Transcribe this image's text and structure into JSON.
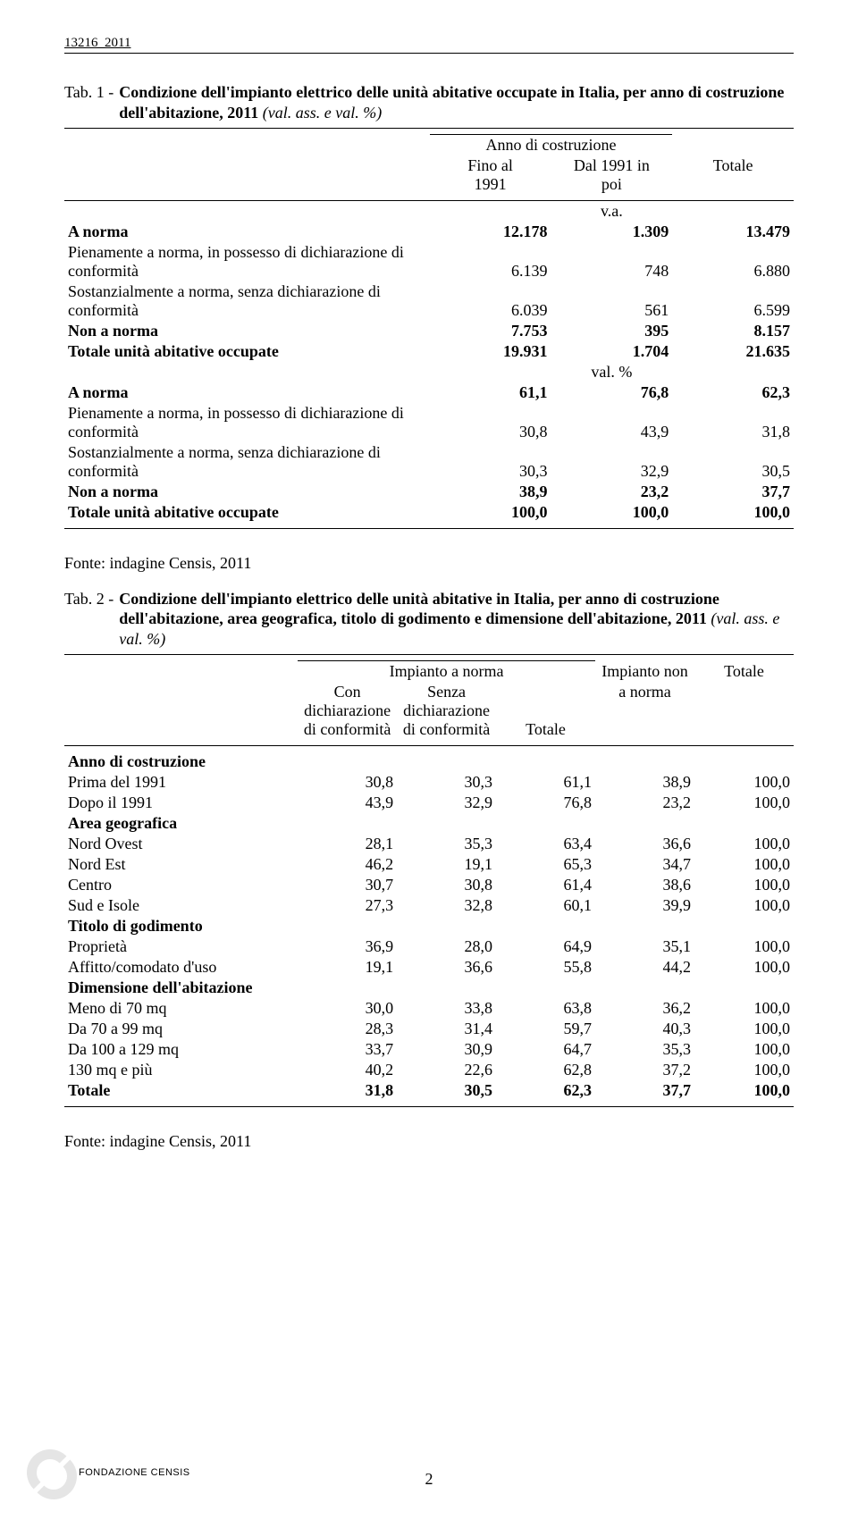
{
  "doc_number": "13216_2011",
  "tab1": {
    "label": "Tab. 1 - ",
    "title_plain": "Condizione dell'impianto elettrico delle unità abitative occupate in Italia, per anno di costruzione dell'abitazione, 2011 ",
    "title_ital": "(val. ass. e val. %)",
    "head": {
      "group": "Anno di costruzione",
      "c1a": "Fino al",
      "c1b": "1991",
      "c2a": "Dal 1991 in",
      "c2b": "poi",
      "c3": "Totale"
    },
    "va_label": "v.a.",
    "pct_label": "val. %",
    "rows_va": [
      {
        "label": "A norma",
        "c1": "12.178",
        "c2": "1.309",
        "c3": "13.479",
        "bold": true
      },
      {
        "label": "Pienamente a norma, in possesso di dichiarazione di conformità",
        "c1": "6.139",
        "c2": "748",
        "c3": "6.880"
      },
      {
        "label": "Sostanzialmente a norma, senza dichiarazione di conformità",
        "c1": "6.039",
        "c2": "561",
        "c3": "6.599"
      },
      {
        "label": "Non a norma",
        "c1": "7.753",
        "c2": "395",
        "c3": "8.157",
        "bold": true
      },
      {
        "label": "Totale unità abitative occupate",
        "c1": "19.931",
        "c2": "1.704",
        "c3": "21.635",
        "bold": true
      }
    ],
    "rows_pct": [
      {
        "label": "A norma",
        "c1": "61,1",
        "c2": "76,8",
        "c3": "62,3",
        "bold": true
      },
      {
        "label": "Pienamente a norma, in possesso di dichiarazione di conformità",
        "c1": "30,8",
        "c2": "43,9",
        "c3": "31,8"
      },
      {
        "label": "Sostanzialmente a norma, senza dichiarazione di conformità",
        "c1": "30,3",
        "c2": "32,9",
        "c3": "30,5"
      },
      {
        "label": "Non a norma",
        "c1": "38,9",
        "c2": "23,2",
        "c3": "37,7",
        "bold": true
      },
      {
        "label": "Totale unità abitative occupate",
        "c1": "100,0",
        "c2": "100,0",
        "c3": "100,0",
        "bold": true
      }
    ]
  },
  "source": "Fonte: indagine Censis, 2011",
  "tab2": {
    "label": "Tab. 2 - ",
    "title_plain": "Condizione dell'impianto elettrico delle unità abitative in Italia, per anno di costruzione dell'abitazione, area geografica, titolo di godimento e dimensione dell'abitazione, 2011 ",
    "title_ital": "(val. ass. e val. %)",
    "head": {
      "group": "Impianto a norma",
      "c1a": "Con",
      "c1b": "dichiarazione",
      "c1c": "di conformità",
      "c2a": "Senza",
      "c2b": "dichiarazione",
      "c2c": "di conformità",
      "c3": "Totale",
      "c4a": "Impianto non",
      "c4b": "a norma",
      "c5": "Totale"
    },
    "sections": [
      {
        "title": "Anno di costruzione",
        "rows": [
          {
            "label": "Prima del 1991",
            "c": [
              "30,8",
              "30,3",
              "61,1",
              "38,9",
              "100,0"
            ]
          },
          {
            "label": "Dopo il 1991",
            "c": [
              "43,9",
              "32,9",
              "76,8",
              "23,2",
              "100,0"
            ]
          }
        ]
      },
      {
        "title": "Area geografica",
        "rows": [
          {
            "label": "Nord Ovest",
            "c": [
              "28,1",
              "35,3",
              "63,4",
              "36,6",
              "100,0"
            ]
          },
          {
            "label": "Nord Est",
            "c": [
              "46,2",
              "19,1",
              "65,3",
              "34,7",
              "100,0"
            ]
          },
          {
            "label": "Centro",
            "c": [
              "30,7",
              "30,8",
              "61,4",
              "38,6",
              "100,0"
            ]
          },
          {
            "label": "Sud e Isole",
            "c": [
              "27,3",
              "32,8",
              "60,1",
              "39,9",
              "100,0"
            ]
          }
        ]
      },
      {
        "title": "Titolo di godimento",
        "rows": [
          {
            "label": "Proprietà",
            "c": [
              "36,9",
              "28,0",
              "64,9",
              "35,1",
              "100,0"
            ]
          },
          {
            "label": "Affitto/comodato d'uso",
            "c": [
              "19,1",
              "36,6",
              "55,8",
              "44,2",
              "100,0"
            ]
          }
        ]
      },
      {
        "title": "Dimensione dell'abitazione",
        "rows": [
          {
            "label": "Meno di 70 mq",
            "c": [
              "30,0",
              "33,8",
              "63,8",
              "36,2",
              "100,0"
            ]
          },
          {
            "label": "Da 70 a 99 mq",
            "c": [
              "28,3",
              "31,4",
              "59,7",
              "40,3",
              "100,0"
            ]
          },
          {
            "label": "Da 100 a 129 mq",
            "c": [
              "33,7",
              "30,9",
              "64,7",
              "35,3",
              "100,0"
            ]
          },
          {
            "label": "130 mq e più",
            "c": [
              "40,2",
              "22,6",
              "62,8",
              "37,2",
              "100,0"
            ]
          }
        ]
      }
    ],
    "total": {
      "label": "Totale",
      "c": [
        "31,8",
        "30,5",
        "62,3",
        "37,7",
        "100,0"
      ]
    }
  },
  "footer_brand": "FONDAZIONE CENSIS",
  "page_number": "2"
}
